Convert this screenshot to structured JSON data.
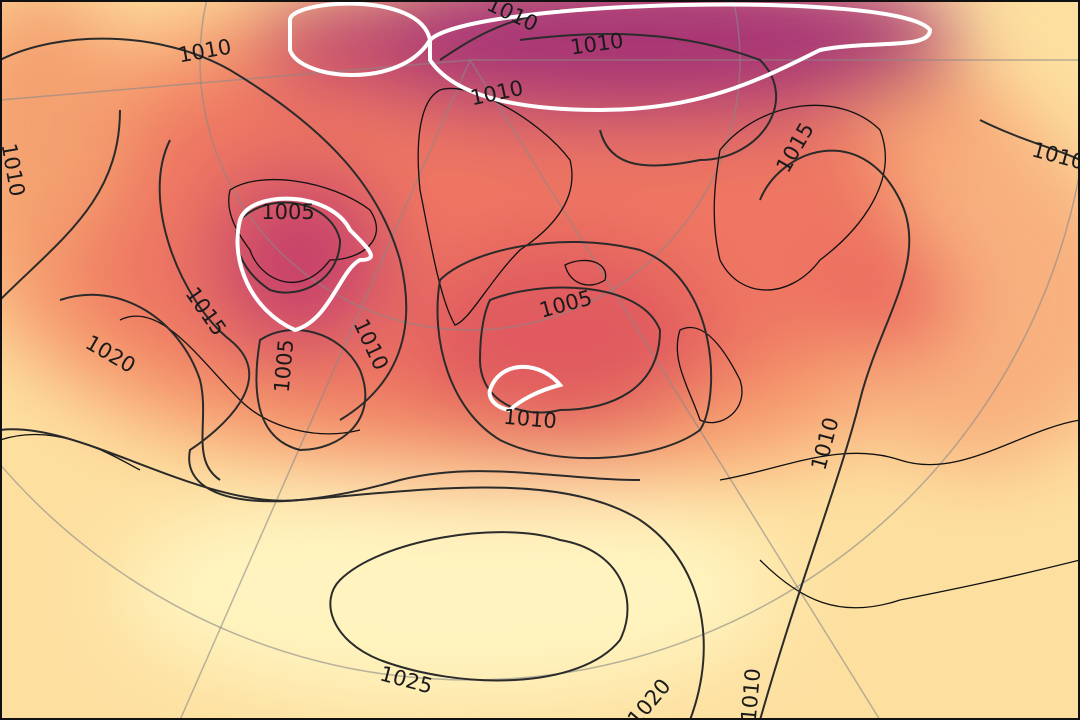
{
  "contour_labels": [
    1010,
    1010,
    1010,
    1010,
    1010,
    1010,
    1015,
    1005,
    1015,
    1020,
    1005,
    1010,
    1005,
    1010,
    1010,
    1025,
    1020,
    1010
  ]
}
